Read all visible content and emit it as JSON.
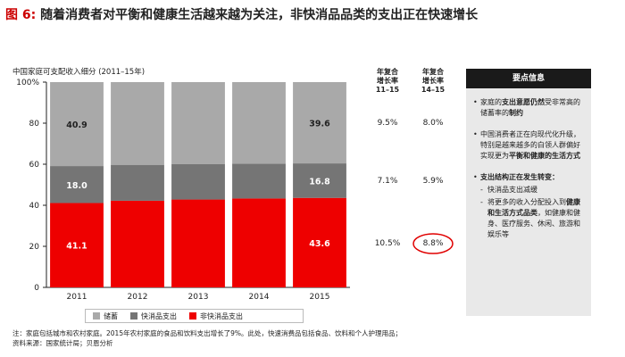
{
  "header": {
    "figure_label": "图 6:",
    "title": "随着消费者对平衡和健康生活越来越为关注，非快消品品类的支出正在快速增长"
  },
  "chart_data": {
    "type": "bar",
    "stacked": true,
    "title": "中国家庭可支配收入细分 (2011–15年)",
    "categories": [
      "2011",
      "2012",
      "2013",
      "2014",
      "2015"
    ],
    "series": [
      {
        "name": "非快消品支出",
        "color": "#ee0000",
        "values": [
          41.1,
          42.2,
          42.8,
          43.3,
          43.6
        ],
        "labels": [
          "41.1",
          "",
          "",
          "",
          "43.6"
        ]
      },
      {
        "name": "快消品支出",
        "color": "#757575",
        "values": [
          18.0,
          17.5,
          17.2,
          17.0,
          16.8
        ],
        "labels": [
          "18.0",
          "",
          "",
          "",
          "16.8"
        ]
      },
      {
        "name": "储蓄",
        "color": "#a9a9a9",
        "values": [
          40.9,
          40.3,
          40.0,
          39.7,
          39.6
        ],
        "labels": [
          "40.9",
          "",
          "",
          "",
          "39.6"
        ]
      }
    ],
    "y_ticks": [
      "0",
      "20",
      "40",
      "60",
      "80",
      "100%"
    ],
    "ylim": [
      0,
      100
    ],
    "grid": false
  },
  "cagr": {
    "col1_header": [
      "年复合",
      "增长率",
      "11–15"
    ],
    "col2_header": [
      "年复合",
      "增长率",
      "14–15"
    ],
    "rows": [
      {
        "c1": "9.5%",
        "c2": "8.0%"
      },
      {
        "c1": "7.1%",
        "c2": "5.9%"
      },
      {
        "c1": "10.5%",
        "c2": "8.8%"
      }
    ]
  },
  "legend": [
    {
      "label": "储蓄",
      "color": "#a9a9a9"
    },
    {
      "label": "快消品支出",
      "color": "#757575"
    },
    {
      "label": "非快消品支出",
      "color": "#ee0000"
    }
  ],
  "note": {
    "line1": "注：家庭包括城市和农村家庭。2015年农村家庭的食品和饮料支出增长了9%。此处，快速消费品包括食品、饮料和个人护理用品；",
    "line2": "资料来源：国家统计局；贝恩分析"
  },
  "panel": {
    "header": "要点信息",
    "p1_a": "家庭的",
    "p1_b": "支出意愿仍然",
    "p1_c": "受非常高的储蓄率的",
    "p1_d": "制约",
    "p2_a": "中国消费者正在向现代化升级，特别是越来越多的白领人群偏好实现更为",
    "p2_b": "平衡和健康的生活方式",
    "p3_head": "支出结构正在发生转变：",
    "p3_s1": "快消品支出减缓",
    "p3_s2_a": "将更多的收入分配投入到",
    "p3_s2_b": "健康和生活方式品类",
    "p3_s2_c": "，如健康和健身、医疗服务、休闲、旅游和娱乐等"
  }
}
